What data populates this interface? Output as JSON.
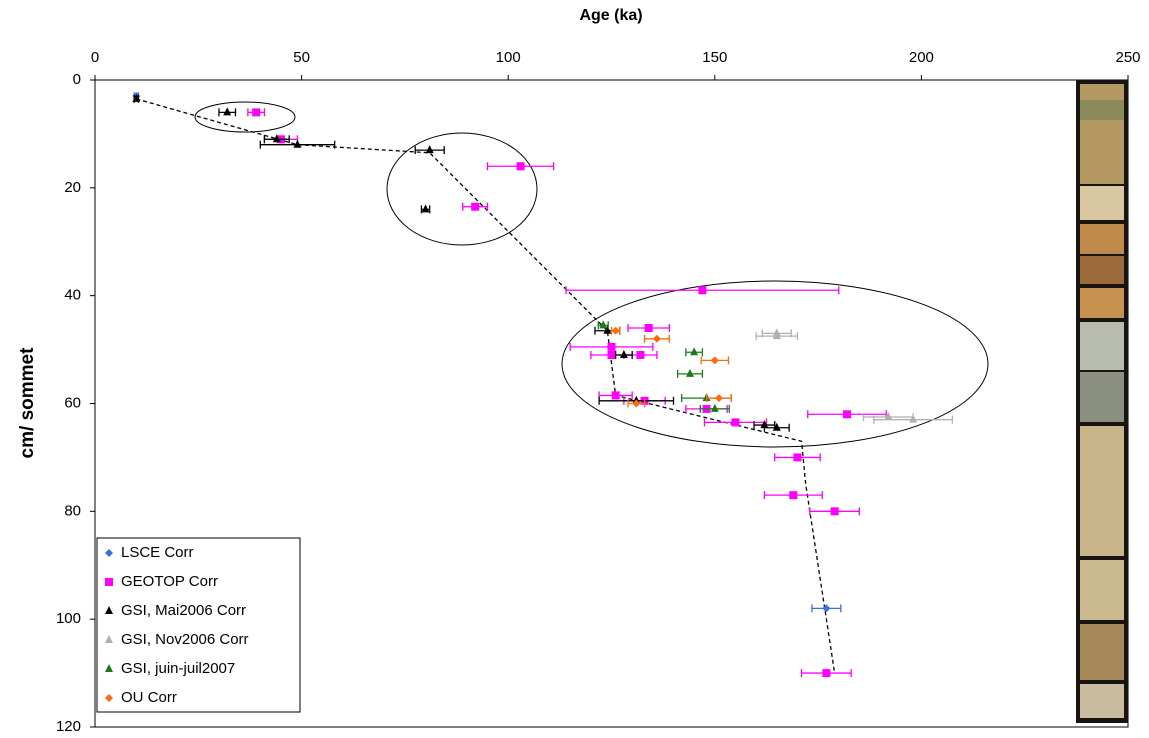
{
  "chart_data": {
    "type": "scatter",
    "xlabel": "Age (ka)",
    "ylabel": "cm/ sommet",
    "xlim": [
      0,
      250
    ],
    "xticks": [
      0,
      50,
      100,
      150,
      200,
      250
    ],
    "ylim": [
      0,
      120
    ],
    "yticks": [
      0,
      20,
      40,
      60,
      80,
      100,
      120
    ],
    "y_inverted": true,
    "x_axis_position": "top",
    "legend": "lower left",
    "series": [
      {
        "name": "LSCE Corr",
        "color": "#3a6fe0",
        "marker": "diamond",
        "x": [
          10,
          177
        ],
        "values": [
          3,
          98
        ],
        "xerr": [
          0.5,
          3.5
        ]
      },
      {
        "name": "GEOTOP Corr",
        "color": "#ff00ff",
        "marker": "square",
        "x": [
          39,
          45,
          103,
          92,
          147,
          134,
          125,
          125,
          132,
          126,
          133,
          148,
          155,
          182,
          170,
          169,
          179,
          177
        ],
        "values": [
          6,
          11,
          16,
          23.5,
          39,
          46,
          49.5,
          51,
          51,
          58.5,
          59.5,
          61,
          63.5,
          62,
          70,
          77,
          80,
          110
        ],
        "xerr": [
          2,
          4,
          8,
          3,
          33,
          5,
          10,
          5,
          4,
          4,
          5,
          5,
          7.5,
          9.5,
          5.5,
          7,
          6,
          6
        ]
      },
      {
        "name": "GSI, Mai2006 Corr",
        "color": "#000000",
        "marker": "triangle",
        "x": [
          10,
          32,
          44,
          49,
          81,
          80,
          124,
          128,
          131,
          162,
          165
        ],
        "values": [
          3.5,
          6,
          11,
          12,
          13,
          24,
          46.5,
          51,
          59.5,
          64,
          64.5
        ],
        "xerr": [
          0.5,
          2,
          3,
          9,
          3.5,
          1,
          3,
          2,
          9,
          2.5,
          3
        ]
      },
      {
        "name": "GSI, Nov2006 Corr",
        "color": "#b0b0b0",
        "marker": "triangle",
        "x": [
          165,
          165,
          192,
          198
        ],
        "values": [
          47,
          47.5,
          62.5,
          63
        ],
        "xerr": [
          3.5,
          5,
          6,
          9.5
        ]
      },
      {
        "name": "GSI, juin-juil2007",
        "color": "#1a7a1a",
        "marker": "triangle",
        "x": [
          123,
          145,
          144,
          148,
          150
        ],
        "values": [
          45.5,
          50.5,
          54.5,
          59,
          61
        ],
        "xerr": [
          1.2,
          2,
          3,
          6,
          3.5
        ]
      },
      {
        "name": "OU Corr",
        "color": "#ff6a10",
        "marker": "diamond",
        "x": [
          126,
          136,
          150,
          151,
          131
        ],
        "values": [
          46.5,
          48,
          52,
          59,
          60
        ],
        "xerr": [
          1,
          3,
          3.3,
          3,
          2
        ]
      }
    ],
    "trend": {
      "color": "#000000",
      "x": [
        10,
        49,
        81,
        124,
        126,
        171,
        172,
        179
      ],
      "values": [
        3.5,
        12,
        13.5,
        46.5,
        58.5,
        67,
        75,
        110
      ]
    }
  }
}
